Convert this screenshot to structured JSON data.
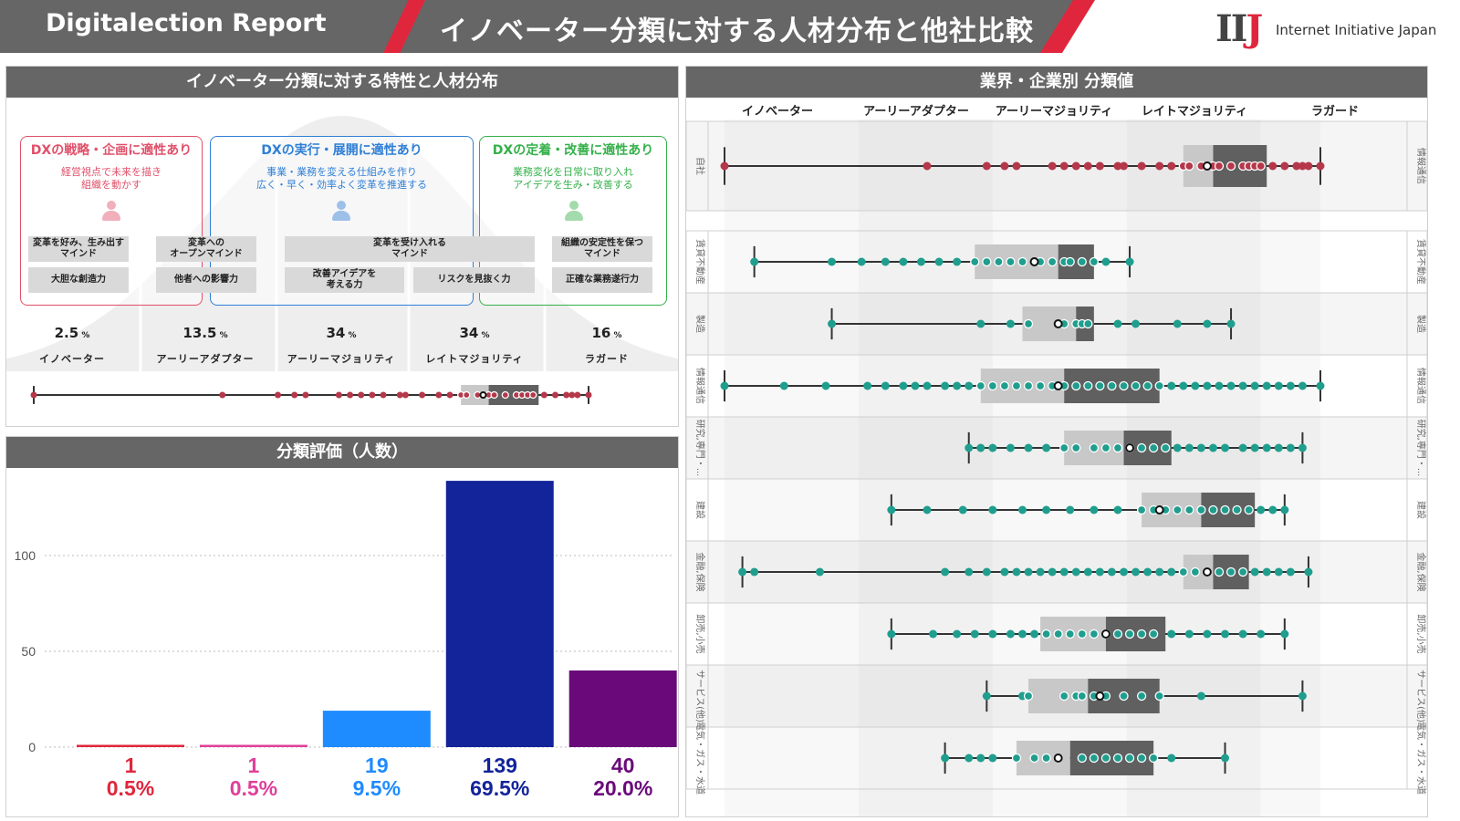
{
  "header": {
    "brand": "Digitalection Report",
    "title": "イノベーター分類に対する人材分布と他社比較",
    "logo": "IIJ",
    "company": "Internet Initiative Japan"
  },
  "dist_panel": {
    "title": "イノベーター分類に対する特性と人材分布",
    "cards": [
      {
        "title": "DXの戦略・企画に適性あり",
        "desc": "経営視点で未来を描き\n組織を動かす",
        "color": "#e0506a"
      },
      {
        "title": "DXの実行・展開に適性あり",
        "desc": "事業・業務を変える仕組みを作り\n広く・早く・効率よく変革を推進する",
        "color": "#2f7fd6"
      },
      {
        "title": "DXの定着・改善に適性あり",
        "desc": "業務変化を日常に取り入れ\nアイデアを生み・改善する",
        "color": "#35b04a"
      }
    ],
    "chips": [
      "変革を好み、生み出す\nマインド",
      "大胆な創造力",
      "変革への\nオープンマインド",
      "他者への影響力",
      "変革を受け入れる\nマインド",
      "改善アイデアを\n考える力",
      "リスクを見抜く力",
      "組織の安定性を保つ\nマインド",
      "正確な業務遂行力"
    ],
    "percents": [
      "2.5",
      "13.5",
      "34",
      "34",
      "16"
    ],
    "pct_unit": "%",
    "categories": [
      "イノベーター",
      "アーリーアダプター",
      "アーリーマジョリティ",
      "レイトマジョリティ",
      "ラガード"
    ]
  },
  "count_panel": {
    "title": "分類評価（人数）"
  },
  "industry_panel": {
    "title": "業界・企業別 分類値",
    "columns": [
      "イノベーター",
      "アーリーアダプター",
      "アーリーマジョリティ",
      "レイトマジョリティ",
      "ラガード"
    ],
    "own_label_left": "自社",
    "own_label_right": "情報通信"
  },
  "colors": {
    "accent_red": "#e0263d",
    "header_grey": "#666666",
    "point_red": "#b5374a",
    "point_teal": "#1f9e8e"
  },
  "chart_data": [
    {
      "type": "bar",
      "title": "分類評価（人数）",
      "categories": [
        "イノベーター",
        "アーリーアダプター",
        "アーリーマジョリティ",
        "レイトマジョリティ",
        "ラガード"
      ],
      "values": [
        1,
        1,
        19,
        139,
        40
      ],
      "labels_count": [
        "1",
        "1",
        "19",
        "139",
        "40"
      ],
      "labels_percent": [
        "0.5%",
        "0.5%",
        "9.5%",
        "69.5%",
        "20.0%"
      ],
      "colors": [
        "#e0263d",
        "#e0409a",
        "#1e8bff",
        "#13239a",
        "#6a0a7a"
      ],
      "label_colors": [
        "#e0263d",
        "#e0409a",
        "#1e8bff",
        "#13239a",
        "#6a0a7a"
      ],
      "yticks": [
        0,
        50,
        100
      ],
      "ylim": [
        0,
        140
      ]
    },
    {
      "type": "box",
      "title": "業界・企業別 分類値",
      "xlim": [
        0,
        100
      ],
      "category_bounds": [
        0,
        22.5,
        45,
        67.5,
        90,
        100
      ],
      "rows": [
        {
          "name": "自社",
          "right": "情報通信",
          "min": 0,
          "q1": 77,
          "median": 82,
          "q3": 91,
          "max": 100,
          "mean": 81,
          "color": "#b5374a",
          "points": [
            0,
            34,
            44,
            47,
            49,
            55,
            57,
            59,
            61,
            63,
            66,
            67,
            70,
            73,
            75,
            77,
            78,
            80,
            82,
            83,
            85,
            87,
            88,
            89,
            90,
            92,
            94,
            96,
            97,
            98,
            100
          ]
        },
        {
          "name": "賃貸不動産",
          "right": "賃貸不動産",
          "min": 5,
          "q1": 42,
          "median": 56,
          "q3": 62,
          "max": 68,
          "mean": 52,
          "color": "#1f9e8e",
          "points": [
            5,
            18,
            23,
            27,
            30,
            33,
            36,
            39,
            42,
            44,
            46,
            48,
            50,
            53,
            55,
            57,
            58,
            60,
            62,
            64,
            68
          ]
        },
        {
          "name": "製造",
          "right": "製造",
          "min": 18,
          "q1": 50,
          "median": 59,
          "q3": 62,
          "max": 85,
          "mean": 56,
          "color": "#1f9e8e",
          "points": [
            18,
            43,
            48,
            51,
            57,
            59,
            60,
            61,
            66,
            69,
            76,
            81,
            85
          ]
        },
        {
          "name": "情報通信",
          "right": "情報通信",
          "min": 0,
          "q1": 43,
          "median": 57,
          "q3": 73,
          "max": 100,
          "mean": 56,
          "color": "#1f9e8e",
          "points": [
            0,
            10,
            17,
            24,
            27,
            30,
            32,
            34,
            37,
            39,
            41,
            43,
            45,
            47,
            49,
            51,
            53,
            55,
            57,
            59,
            61,
            63,
            65,
            67,
            69,
            71,
            73,
            75,
            77,
            79,
            81,
            83,
            85,
            87,
            89,
            91,
            93,
            95,
            97,
            100
          ]
        },
        {
          "name": "研究,専門・...",
          "right": "研究,専門・...",
          "min": 41,
          "q1": 57,
          "median": 67,
          "q3": 75,
          "max": 97,
          "mean": 68,
          "color": "#1f9e8e",
          "points": [
            41,
            43,
            45,
            48,
            51,
            54,
            57,
            59,
            62,
            64,
            66,
            68,
            70,
            72,
            74,
            76,
            78,
            80,
            82,
            84,
            87,
            89,
            91,
            93,
            95,
            97
          ]
        },
        {
          "name": "建設",
          "right": "建設",
          "min": 28,
          "q1": 70,
          "median": 80,
          "q3": 89,
          "max": 94,
          "mean": 73,
          "color": "#1f9e8e",
          "points": [
            28,
            34,
            40,
            45,
            50,
            54,
            58,
            62,
            66,
            70,
            72,
            74,
            76,
            78,
            80,
            82,
            84,
            86,
            88,
            90,
            92,
            94
          ]
        },
        {
          "name": "金融,保険",
          "right": "金融,保険",
          "min": 3,
          "q1": 77,
          "median": 82,
          "q3": 88,
          "max": 98,
          "mean": 81,
          "color": "#1f9e8e",
          "points": [
            3,
            5,
            16,
            37,
            41,
            44,
            47,
            49,
            51,
            53,
            55,
            57,
            59,
            61,
            63,
            65,
            67,
            69,
            71,
            73,
            75,
            77,
            79,
            81,
            83,
            85,
            87,
            89,
            91,
            93,
            95,
            98
          ]
        },
        {
          "name": "卸売,小売",
          "right": "卸売,小売",
          "min": 28,
          "q1": 53,
          "median": 64,
          "q3": 74,
          "max": 94,
          "mean": 64,
          "color": "#1f9e8e",
          "points": [
            28,
            35,
            39,
            42,
            45,
            48,
            50,
            52,
            54,
            56,
            58,
            60,
            62,
            64,
            66,
            68,
            70,
            72,
            75,
            78,
            81,
            84,
            87,
            90,
            94
          ]
        },
        {
          "name": "サービス(他)",
          "right": "サービス(他)",
          "min": 44,
          "q1": 51,
          "median": 61,
          "q3": 73,
          "max": 97,
          "mean": 63,
          "color": "#1f9e8e",
          "points": [
            44,
            50,
            51,
            57,
            59,
            60,
            62,
            64,
            67,
            70,
            73,
            80,
            97
          ]
        },
        {
          "name": "電気・ガス・水道",
          "right": "電気・ガス・水道",
          "min": 37,
          "q1": 49,
          "median": 58,
          "q3": 72,
          "max": 84,
          "mean": 56,
          "color": "#1f9e8e",
          "points": [
            37,
            41,
            43,
            45,
            49,
            52,
            54,
            56,
            60,
            62,
            64,
            66,
            68,
            70,
            72,
            75,
            84
          ]
        }
      ]
    }
  ]
}
